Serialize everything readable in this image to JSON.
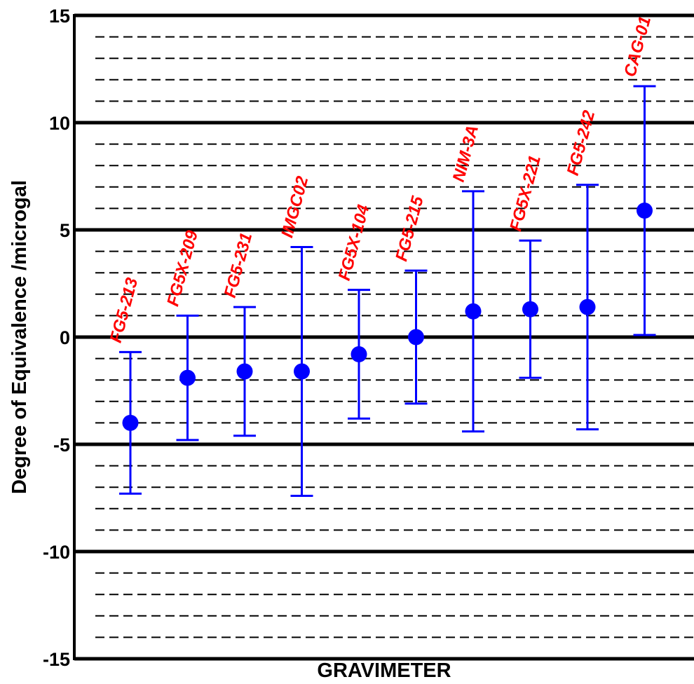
{
  "chart_data": {
    "type": "scatter",
    "title": "",
    "xlabel": "GRAVIMETER",
    "ylabel": "Degree of Equivalence /microgal",
    "ylim": [
      -15,
      15
    ],
    "major_ticks": [
      15,
      10,
      5,
      0,
      -5,
      -10,
      -15
    ],
    "tick_labels": [
      "15",
      "10",
      "5",
      "0",
      "-5",
      "-10",
      "-15"
    ],
    "minor_step": 1,
    "grid": true,
    "colors": {
      "points": "#0000ff",
      "labels": "#ff0000",
      "major_grid": "#000000",
      "minor_grid": "#000000"
    },
    "points": [
      {
        "label": "FG5-213",
        "value": -4.0,
        "lower": -7.3,
        "upper": -0.7
      },
      {
        "label": "FG5X-209",
        "value": -1.9,
        "lower": -4.8,
        "upper": 1.0
      },
      {
        "label": "FG5-231",
        "value": -1.6,
        "lower": -4.6,
        "upper": 1.4
      },
      {
        "label": "IMGC02",
        "value": -1.6,
        "lower": -7.4,
        "upper": 4.2
      },
      {
        "label": "FG5X-104",
        "value": -0.8,
        "lower": -3.8,
        "upper": 2.2
      },
      {
        "label": "FG5-215",
        "value": 0.0,
        "lower": -3.1,
        "upper": 3.1
      },
      {
        "label": "NIM-3A",
        "value": 1.2,
        "lower": -4.4,
        "upper": 6.8
      },
      {
        "label": "FG5X-221",
        "value": 1.3,
        "lower": -1.9,
        "upper": 4.5
      },
      {
        "label": "FG5-242",
        "value": 1.4,
        "lower": -4.3,
        "upper": 7.1
      },
      {
        "label": "CAG-01",
        "value": 5.9,
        "lower": 0.1,
        "upper": 11.7
      }
    ]
  }
}
